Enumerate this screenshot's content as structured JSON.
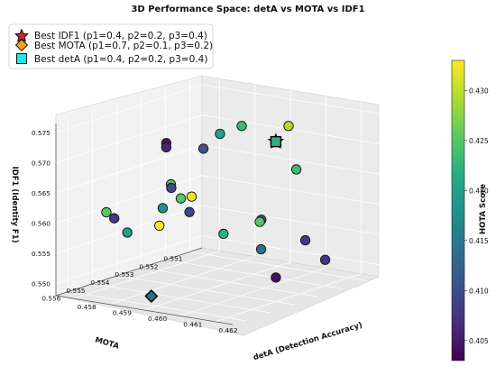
{
  "chart_data": {
    "type": "scatter",
    "title": "3D Performance Space: detA vs MOTA vs IDF1",
    "xlabel": "detA (Detection Accuracy)",
    "ylabel": "MOTA",
    "zlabel": "IDF1 (Identity F1)",
    "colorbar_label": "HOTA Score",
    "colormap": "viridis",
    "color_range": [
      0.403,
      0.433
    ],
    "colorbar_ticks": [
      "0.405",
      "0.410",
      "0.415",
      "0.420",
      "0.425",
      "0.430"
    ],
    "x_ticks": [
      "0.458",
      "0.459",
      "0.460",
      "0.461",
      "0.462"
    ],
    "y_ticks": [
      "0.551",
      "0.552",
      "0.553",
      "0.554",
      "0.555",
      "0.556"
    ],
    "z_ticks": [
      "0.550",
      "0.555",
      "0.560",
      "0.565",
      "0.570",
      "0.575"
    ],
    "xlim": [
      0.4575,
      0.4625
    ],
    "ylim": [
      0.5505,
      0.5565
    ],
    "zlim": [
      0.548,
      0.5765
    ],
    "legend_position": "top-left",
    "legend": [
      {
        "label": "Best IDF1 (p1=0.4, p2=0.2, p3=0.4)",
        "marker": "star",
        "color": "#d62728"
      },
      {
        "label": "Best MOTA (p1=0.7, p2=0.1, p3=0.2)",
        "marker": "diamond",
        "color": "#ff9f1c"
      },
      {
        "label": "Best detA (p1=0.4, p2=0.2, p3=0.4)",
        "marker": "square",
        "color": "#17e8e8"
      }
    ],
    "points": [
      {
        "detA": 0.4605,
        "mota": 0.5513,
        "idf1": 0.5721,
        "hota": 0.4295
      },
      {
        "detA": 0.46,
        "mota": 0.5525,
        "idf1": 0.5732,
        "hota": 0.4235
      },
      {
        "detA": 0.4598,
        "mota": 0.5531,
        "idf1": 0.5725,
        "hota": 0.42
      },
      {
        "detA": 0.4612,
        "mota": 0.552,
        "idf1": 0.5665,
        "hota": 0.4235
      },
      {
        "detA": 0.4594,
        "mota": 0.5532,
        "idf1": 0.5698,
        "hota": 0.411
      },
      {
        "detA": 0.4591,
        "mota": 0.5541,
        "idf1": 0.5648,
        "hota": 0.425
      },
      {
        "detA": 0.4598,
        "mota": 0.5551,
        "idf1": 0.5662,
        "hota": 0.409
      },
      {
        "detA": 0.4601,
        "mota": 0.5547,
        "idf1": 0.5645,
        "hota": 0.432
      },
      {
        "detA": 0.46,
        "mota": 0.555,
        "idf1": 0.5645,
        "hota": 0.425
      },
      {
        "detA": 0.4589,
        "mota": 0.554,
        "idf1": 0.5713,
        "hota": 0.405
      },
      {
        "detA": 0.4589,
        "mota": 0.554,
        "idf1": 0.5706,
        "hota": 0.406
      },
      {
        "detA": 0.4599,
        "mota": 0.5556,
        "idf1": 0.5636,
        "hota": 0.418
      },
      {
        "detA": 0.4618,
        "mota": 0.5525,
        "idf1": 0.556,
        "hota": 0.408
      },
      {
        "detA": 0.4609,
        "mota": 0.553,
        "idf1": 0.5592,
        "hota": 0.411
      },
      {
        "detA": 0.4612,
        "mota": 0.5535,
        "idf1": 0.5598,
        "hota": 0.425
      },
      {
        "detA": 0.461,
        "mota": 0.5547,
        "idf1": 0.5592,
        "hota": 0.422
      },
      {
        "detA": 0.4596,
        "mota": 0.5553,
        "idf1": 0.56,
        "hota": 0.433
      },
      {
        "detA": 0.4586,
        "mota": 0.5557,
        "idf1": 0.5608,
        "hota": 0.408
      },
      {
        "detA": 0.4589,
        "mota": 0.5556,
        "idf1": 0.5586,
        "hota": 0.42
      },
      {
        "detA": 0.4581,
        "mota": 0.5553,
        "idf1": 0.5608,
        "hota": 0.425
      },
      {
        "detA": 0.4625,
        "mota": 0.5527,
        "idf1": 0.5537,
        "hota": 0.408
      },
      {
        "detA": 0.462,
        "mota": 0.554,
        "idf1": 0.552,
        "hota": 0.404
      },
      {
        "detA": 0.4611,
        "mota": 0.5533,
        "idf1": 0.5549,
        "hota": 0.414
      },
      {
        "detA": 0.4599,
        "mota": 0.5545,
        "idf1": 0.5615,
        "hota": 0.409
      }
    ],
    "best_points": [
      {
        "label": "Best IDF1",
        "marker": "star",
        "detA": 0.462,
        "mota": 0.554,
        "idf1": 0.5745,
        "hota": 0.422
      },
      {
        "label": "Best detA",
        "marker": "square",
        "detA": 0.462,
        "mota": 0.554,
        "idf1": 0.5745,
        "hota": 0.422
      },
      {
        "label": "Best MOTA",
        "marker": "diamond",
        "detA": 0.4602,
        "mota": 0.5565,
        "idf1": 0.5505,
        "hota": 0.414
      }
    ]
  }
}
